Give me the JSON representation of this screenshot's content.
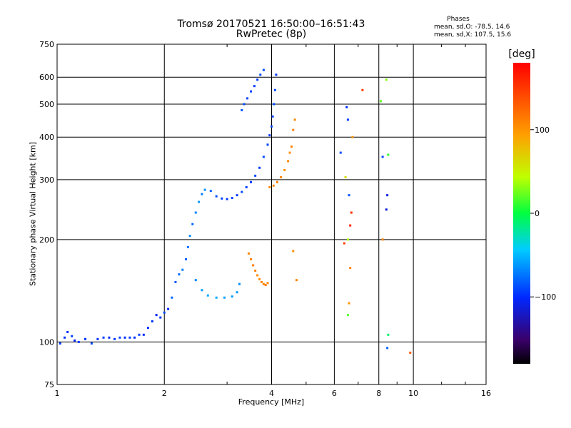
{
  "chart_data": {
    "type": "scatter",
    "title": "Tromsø 20170521 16:50:00–16:51:43",
    "subtitle": "RwPretec (8p)",
    "xlabel": "Frequency [MHz]",
    "ylabel": "Stationary phase Virtual Height [km]",
    "xscale": "log",
    "yscale": "log",
    "xlim": [
      1,
      16
    ],
    "ylim": [
      75,
      750
    ],
    "x_ticks": [
      1,
      2,
      4,
      6,
      8,
      10,
      16
    ],
    "x_tick_labels": [
      "1",
      "2",
      "4",
      "6",
      "8",
      "10",
      "16"
    ],
    "y_ticks": [
      75,
      100,
      200,
      300,
      400,
      500,
      600,
      750
    ],
    "y_tick_labels": [
      "75",
      "100",
      "200",
      "300",
      "400",
      "500",
      "600",
      "750"
    ],
    "grid": true,
    "phases": {
      "title": "Phases",
      "o_mode": "mean, sd,O: -78.5, 14.6",
      "x_mode": "mean, sd,X: 107.5, 15.6"
    },
    "colorbar": {
      "title": "[deg]",
      "range": [
        -180,
        180
      ],
      "ticks": [
        -100,
        0,
        100
      ],
      "tick_labels": [
        "−100",
        "0",
        "100"
      ]
    },
    "series": [
      {
        "values": [
          [
            1.02,
            99,
            -95
          ],
          [
            1.05,
            103,
            -98
          ],
          [
            1.07,
            107,
            -100
          ],
          [
            1.1,
            104,
            -92
          ],
          [
            1.12,
            101,
            -104
          ],
          [
            1.15,
            100,
            -96
          ],
          [
            1.2,
            102,
            -100
          ],
          [
            1.25,
            99,
            -90
          ],
          [
            1.3,
            102,
            -98
          ],
          [
            1.35,
            103,
            -94
          ],
          [
            1.4,
            103,
            -101
          ],
          [
            1.45,
            102,
            -97
          ],
          [
            1.5,
            103,
            -92
          ],
          [
            1.55,
            103,
            -100
          ],
          [
            1.6,
            103,
            -95
          ],
          [
            1.65,
            103,
            -98
          ],
          [
            1.7,
            105,
            -93
          ],
          [
            1.75,
            105,
            -100
          ],
          [
            1.8,
            110,
            -102
          ],
          [
            1.85,
            115,
            -98
          ],
          [
            1.9,
            120,
            -105
          ],
          [
            1.95,
            118,
            -96
          ],
          [
            2.0,
            122,
            -90
          ],
          [
            2.05,
            125,
            -100
          ],
          [
            2.1,
            135,
            -80
          ],
          [
            2.15,
            150,
            -85
          ],
          [
            2.2,
            158,
            -78
          ],
          [
            2.25,
            163,
            -70
          ],
          [
            2.3,
            175,
            -82
          ],
          [
            2.33,
            190,
            -74
          ],
          [
            2.36,
            205,
            -66
          ],
          [
            2.4,
            222,
            -78
          ],
          [
            2.45,
            240,
            -70
          ],
          [
            2.5,
            258,
            -62
          ],
          [
            2.55,
            272,
            -72
          ],
          [
            2.6,
            280,
            -64
          ],
          [
            2.7,
            278,
            -80
          ],
          [
            2.8,
            268,
            -88
          ],
          [
            2.9,
            264,
            -92
          ],
          [
            3.0,
            263,
            -95
          ],
          [
            3.1,
            265,
            -90
          ],
          [
            3.2,
            270,
            -94
          ],
          [
            3.3,
            276,
            -88
          ],
          [
            3.4,
            285,
            -92
          ],
          [
            3.5,
            295,
            -96
          ],
          [
            3.6,
            308,
            -90
          ],
          [
            3.7,
            325,
            -94
          ],
          [
            3.8,
            350,
            -88
          ],
          [
            3.9,
            380,
            -92
          ],
          [
            3.95,
            405,
            -96
          ],
          [
            4.0,
            430,
            -90
          ],
          [
            4.03,
            460,
            -94
          ],
          [
            4.06,
            500,
            -88
          ],
          [
            4.09,
            550,
            -92
          ],
          [
            4.12,
            610,
            -96
          ],
          [
            3.3,
            480,
            -85
          ],
          [
            3.35,
            500,
            -88
          ],
          [
            3.42,
            520,
            -90
          ],
          [
            3.5,
            545,
            -92
          ],
          [
            3.58,
            565,
            -94
          ],
          [
            3.65,
            590,
            -96
          ],
          [
            3.72,
            610,
            -90
          ],
          [
            3.8,
            630,
            -88
          ],
          [
            2.45,
            152,
            -70
          ],
          [
            2.55,
            142,
            -60
          ],
          [
            2.65,
            137,
            -58
          ],
          [
            2.8,
            135,
            -56
          ],
          [
            2.95,
            135,
            -58
          ],
          [
            3.1,
            136,
            -60
          ],
          [
            3.2,
            140,
            -62
          ],
          [
            3.25,
            148,
            -64
          ]
        ]
      },
      {
        "values": [
          [
            3.45,
            182,
            108
          ],
          [
            3.5,
            175,
            110
          ],
          [
            3.55,
            168,
            112
          ],
          [
            3.6,
            162,
            110
          ],
          [
            3.65,
            157,
            106
          ],
          [
            3.7,
            153,
            104
          ],
          [
            3.75,
            150,
            108
          ],
          [
            3.8,
            148,
            110
          ],
          [
            3.85,
            147,
            112
          ],
          [
            3.9,
            149,
            106
          ],
          [
            3.95,
            285,
            108
          ],
          [
            4.05,
            288,
            110
          ],
          [
            4.15,
            295,
            112
          ],
          [
            4.25,
            305,
            110
          ],
          [
            4.35,
            320,
            106
          ],
          [
            4.45,
            340,
            108
          ],
          [
            4.5,
            360,
            104
          ],
          [
            4.55,
            375,
            110
          ],
          [
            4.6,
            420,
            112
          ],
          [
            4.65,
            450,
            106
          ],
          [
            4.6,
            185,
            104
          ],
          [
            4.7,
            152,
            108
          ]
        ]
      },
      {
        "values": [
          [
            6.25,
            360,
            -90
          ],
          [
            6.5,
            490,
            -100
          ],
          [
            6.55,
            450,
            -95
          ],
          [
            6.6,
            270,
            -85
          ],
          [
            7.2,
            550,
            150
          ],
          [
            6.7,
            240,
            155
          ],
          [
            6.65,
            220,
            160
          ],
          [
            6.55,
            200,
            40
          ],
          [
            6.4,
            195,
            145
          ],
          [
            6.6,
            130,
            100
          ],
          [
            6.65,
            165,
            110
          ],
          [
            6.55,
            120,
            20
          ],
          [
            6.75,
            400,
            100
          ],
          [
            6.45,
            305,
            60
          ],
          [
            8.1,
            510,
            20
          ],
          [
            8.2,
            350,
            -90
          ],
          [
            8.4,
            590,
            30
          ],
          [
            8.5,
            355,
            10
          ],
          [
            8.45,
            270,
            -110
          ],
          [
            8.4,
            245,
            -115
          ],
          [
            8.5,
            105,
            -10
          ],
          [
            8.45,
            96,
            -80
          ],
          [
            8.2,
            200,
            110
          ],
          [
            9.8,
            93,
            130
          ]
        ]
      }
    ]
  }
}
